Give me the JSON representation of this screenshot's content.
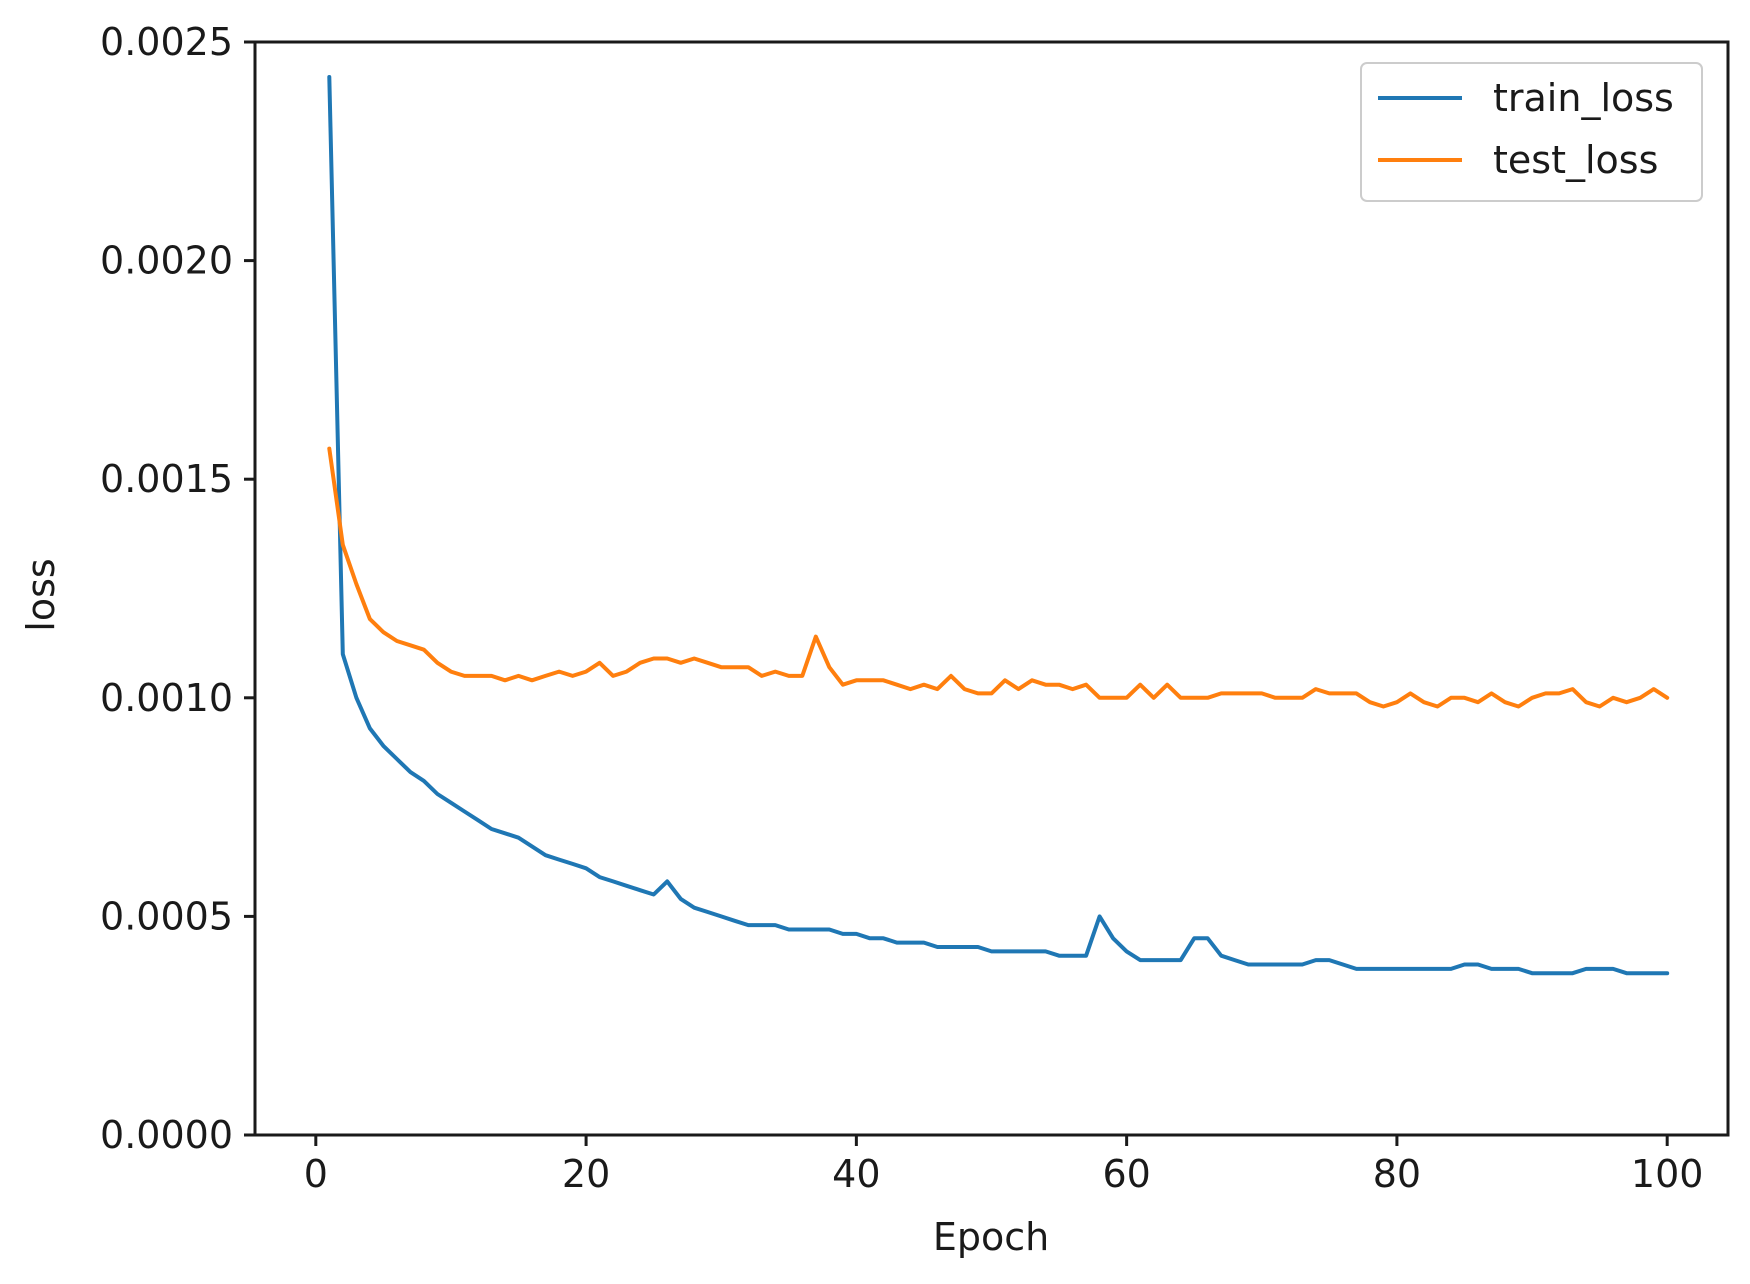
{
  "chart_data": {
    "type": "line",
    "title": "",
    "xlabel": "Epoch",
    "ylabel": "loss",
    "xlim": [
      -4.5,
      104.5
    ],
    "ylim": [
      0,
      0.0025
    ],
    "xticks": [
      0,
      20,
      40,
      60,
      80,
      100
    ],
    "xtick_labels": [
      "0",
      "20",
      "40",
      "60",
      "80",
      "100"
    ],
    "yticks": [
      0,
      0.0005,
      0.001,
      0.0015,
      0.002,
      0.0025
    ],
    "ytick_labels": [
      "0.0000",
      "0.0005",
      "0.0010",
      "0.0015",
      "0.0020",
      "0.0025"
    ],
    "grid": false,
    "legend_position": "top-right",
    "x": [
      1,
      2,
      3,
      4,
      5,
      6,
      7,
      8,
      9,
      10,
      11,
      12,
      13,
      14,
      15,
      16,
      17,
      18,
      19,
      20,
      21,
      22,
      23,
      24,
      25,
      26,
      27,
      28,
      29,
      30,
      31,
      32,
      33,
      34,
      35,
      36,
      37,
      38,
      39,
      40,
      41,
      42,
      43,
      44,
      45,
      46,
      47,
      48,
      49,
      50,
      51,
      52,
      53,
      54,
      55,
      56,
      57,
      58,
      59,
      60,
      61,
      62,
      63,
      64,
      65,
      66,
      67,
      68,
      69,
      70,
      71,
      72,
      73,
      74,
      75,
      76,
      77,
      78,
      79,
      80,
      81,
      82,
      83,
      84,
      85,
      86,
      87,
      88,
      89,
      90,
      91,
      92,
      93,
      94,
      95,
      96,
      97,
      98,
      99,
      100
    ],
    "series": [
      {
        "name": "train_loss",
        "color": "#1f77b4",
        "values": [
          0.00242,
          0.0011,
          0.001,
          0.00093,
          0.00089,
          0.00086,
          0.00083,
          0.00081,
          0.00078,
          0.00076,
          0.00074,
          0.00072,
          0.0007,
          0.00069,
          0.00068,
          0.00066,
          0.00064,
          0.00063,
          0.00062,
          0.00061,
          0.00059,
          0.00058,
          0.00057,
          0.00056,
          0.00055,
          0.00058,
          0.00054,
          0.00052,
          0.00051,
          0.0005,
          0.00049,
          0.00048,
          0.00048,
          0.00048,
          0.00047,
          0.00047,
          0.00047,
          0.00047,
          0.00046,
          0.00046,
          0.00045,
          0.00045,
          0.00044,
          0.00044,
          0.00044,
          0.00043,
          0.00043,
          0.00043,
          0.00043,
          0.00042,
          0.00042,
          0.00042,
          0.00042,
          0.00042,
          0.00041,
          0.00041,
          0.00041,
          0.0005,
          0.00045,
          0.00042,
          0.0004,
          0.0004,
          0.0004,
          0.0004,
          0.00045,
          0.00045,
          0.00041,
          0.0004,
          0.00039,
          0.00039,
          0.00039,
          0.00039,
          0.00039,
          0.0004,
          0.0004,
          0.00039,
          0.00038,
          0.00038,
          0.00038,
          0.00038,
          0.00038,
          0.00038,
          0.00038,
          0.00038,
          0.00039,
          0.00039,
          0.00038,
          0.00038,
          0.00038,
          0.00037,
          0.00037,
          0.00037,
          0.00037,
          0.00038,
          0.00038,
          0.00038,
          0.00037,
          0.00037,
          0.00037,
          0.00037
        ]
      },
      {
        "name": "test_loss",
        "color": "#ff7f0e",
        "values": [
          0.00157,
          0.00135,
          0.00126,
          0.00118,
          0.00115,
          0.00113,
          0.00112,
          0.00111,
          0.00108,
          0.00106,
          0.00105,
          0.00105,
          0.00105,
          0.00104,
          0.00105,
          0.00104,
          0.00105,
          0.00106,
          0.00105,
          0.00106,
          0.00108,
          0.00105,
          0.00106,
          0.00108,
          0.00109,
          0.00109,
          0.00108,
          0.00109,
          0.00108,
          0.00107,
          0.00107,
          0.00107,
          0.00105,
          0.00106,
          0.00105,
          0.00105,
          0.00114,
          0.00107,
          0.00103,
          0.00104,
          0.00104,
          0.00104,
          0.00103,
          0.00102,
          0.00103,
          0.00102,
          0.00105,
          0.00102,
          0.00101,
          0.00101,
          0.00104,
          0.00102,
          0.00104,
          0.00103,
          0.00103,
          0.00102,
          0.00103,
          0.001,
          0.001,
          0.001,
          0.00103,
          0.001,
          0.00103,
          0.001,
          0.001,
          0.001,
          0.00101,
          0.00101,
          0.00101,
          0.00101,
          0.001,
          0.001,
          0.001,
          0.00102,
          0.00101,
          0.00101,
          0.00101,
          0.00099,
          0.00098,
          0.00099,
          0.00101,
          0.00099,
          0.00098,
          0.001,
          0.001,
          0.00099,
          0.00101,
          0.00099,
          0.00098,
          0.001,
          0.00101,
          0.00101,
          0.00102,
          0.00099,
          0.00098,
          0.001,
          0.00099,
          0.001,
          0.00102,
          0.001
        ]
      }
    ]
  }
}
